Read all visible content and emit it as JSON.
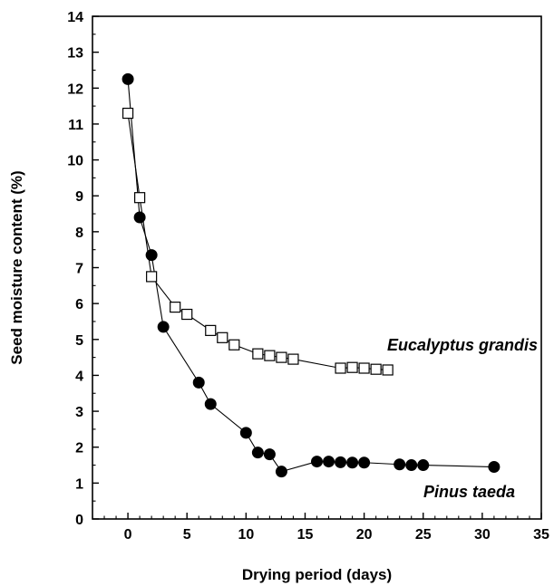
{
  "chart_data": {
    "type": "scatter",
    "xlabel": "Drying period (days)",
    "ylabel": "Seed moisture content (%)",
    "xlim": [
      -3,
      35
    ],
    "ylim": [
      0,
      14
    ],
    "x_ticks": [
      0,
      5,
      10,
      15,
      20,
      25,
      30,
      35
    ],
    "y_ticks": [
      0,
      1,
      2,
      3,
      4,
      5,
      6,
      7,
      8,
      9,
      10,
      11,
      12,
      13,
      14
    ],
    "grid": false,
    "series": [
      {
        "name": "Eucalyptus grandis",
        "marker": "open-square",
        "line": true,
        "x": [
          0,
          1,
          2,
          4,
          5,
          7,
          8,
          9,
          11,
          12,
          13,
          14,
          18,
          19,
          20,
          21,
          22
        ],
        "y": [
          11.3,
          8.95,
          6.75,
          5.9,
          5.7,
          5.25,
          5.05,
          4.85,
          4.6,
          4.55,
          4.5,
          4.45,
          4.2,
          4.22,
          4.2,
          4.17,
          4.15
        ]
      },
      {
        "name": "Pinus taeda",
        "marker": "filled-circle",
        "line": true,
        "x": [
          0,
          1,
          2,
          3,
          6,
          7,
          10,
          11,
          12,
          13,
          16,
          17,
          18,
          19,
          20,
          23,
          24,
          25,
          31
        ],
        "y": [
          12.25,
          8.4,
          7.35,
          5.35,
          3.8,
          3.2,
          2.4,
          1.85,
          1.8,
          1.32,
          1.6,
          1.6,
          1.58,
          1.57,
          1.57,
          1.52,
          1.5,
          1.5,
          1.45
        ]
      }
    ]
  }
}
